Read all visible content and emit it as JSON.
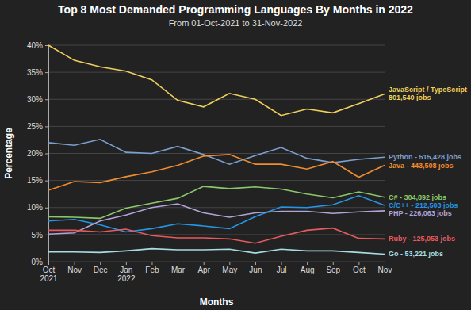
{
  "chart_data": {
    "type": "line",
    "title": "Top 8 Most Demanded Programming Languages By Months in 2022",
    "subtitle": "From 01-Oct-2021 to 31-Nov-2022",
    "xlabel": "Months",
    "ylabel": "Percentage",
    "categories": [
      "Oct 2021",
      "Nov",
      "Dec",
      "Jan 2022",
      "Feb",
      "Mar",
      "Apr",
      "May",
      "Jun",
      "Jul",
      "Aug",
      "Sep",
      "Oct",
      "Nov"
    ],
    "ylim": [
      0,
      40
    ],
    "yticks": [
      {
        "value": 0,
        "label": "0%"
      },
      {
        "value": 5,
        "label": "5%"
      },
      {
        "value": 10,
        "label": "10%"
      },
      {
        "value": 15,
        "label": "15%"
      },
      {
        "value": 20,
        "label": "20%"
      },
      {
        "value": 25,
        "label": "25%"
      },
      {
        "value": 30,
        "label": "30%"
      },
      {
        "value": 35,
        "label": "35%"
      },
      {
        "value": 40,
        "label": "40%"
      }
    ],
    "grid": true,
    "series": [
      {
        "name": "JavaScript / TypeScript",
        "note": "801,540 jobs",
        "color": "#f0cf5a",
        "values": [
          40,
          37.2,
          36,
          35.2,
          33.6,
          29.8,
          28.6,
          31.1,
          30,
          27,
          28.2,
          27.5,
          29.2,
          31
        ]
      },
      {
        "name": "Python - 515,428 jobs",
        "color": "#7b9fd0",
        "values": [
          22,
          21.5,
          22.6,
          20.2,
          20,
          21.3,
          19.8,
          18,
          19.6,
          21.1,
          19.1,
          18.3,
          18.9,
          19.3
        ]
      },
      {
        "name": "Java - 443,508 jobs",
        "color": "#f08c30",
        "values": [
          13.2,
          14.8,
          14.6,
          15.7,
          16.6,
          17.8,
          19.5,
          19.8,
          18,
          18,
          17.1,
          18.5,
          15.6,
          17.8
        ]
      },
      {
        "name": "C# - 304,892 jobs",
        "color": "#8cc86a",
        "values": [
          8.3,
          8.2,
          8,
          9.9,
          10.8,
          11.7,
          13.9,
          13.5,
          13.8,
          13.4,
          12.5,
          11.8,
          12.9,
          11.9
        ]
      },
      {
        "name": "C/C++ - 212,503 jobs",
        "color": "#2596e6",
        "values": [
          7.5,
          7.8,
          6.8,
          5.5,
          6.1,
          7,
          6.6,
          6.1,
          8.3,
          10.1,
          10,
          10.5,
          12.2,
          10.4
        ]
      },
      {
        "name": "PHP - 226,063 jobs",
        "color": "#b3a3d8",
        "values": [
          5.1,
          5.3,
          7.5,
          8.6,
          10,
          10.7,
          9,
          8.2,
          9,
          9.3,
          9.3,
          8.9,
          9.2,
          9.4
        ]
      },
      {
        "name": "Ruby - 125,053 jobs",
        "color": "#e65a5e",
        "values": [
          5.8,
          5.8,
          5.5,
          6,
          4.8,
          4.4,
          4.4,
          4.2,
          3.4,
          4.7,
          5.8,
          6.2,
          4.3,
          4.2
        ]
      },
      {
        "name": "Go - 53,221 jobs",
        "color": "#a6dde2",
        "values": [
          1.8,
          1.8,
          1.7,
          2,
          2.4,
          2.2,
          2.2,
          2.3,
          1.6,
          2.3,
          2,
          2,
          1.7,
          1.4
        ]
      }
    ]
  }
}
